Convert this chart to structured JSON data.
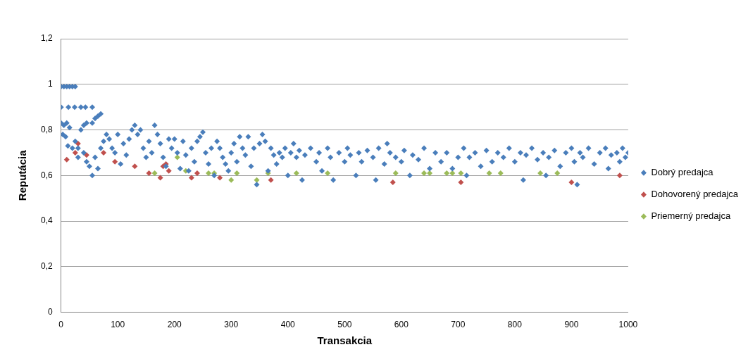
{
  "chart_data": {
    "type": "scatter",
    "xlabel": "Transakcia",
    "ylabel": "Reputácia",
    "xlim": [
      0,
      1000
    ],
    "ylim": [
      0,
      1.2
    ],
    "xticks": [
      0,
      100,
      200,
      300,
      400,
      500,
      600,
      700,
      800,
      900,
      1000
    ],
    "yticks": [
      0,
      {
        "value": 0.2,
        "label": "0,2"
      },
      {
        "value": 0.4,
        "label": "0,4"
      },
      {
        "value": 0.6,
        "label": "0,6"
      },
      {
        "value": 0.8,
        "label": "0,8"
      },
      1,
      {
        "value": 1.2,
        "label": "1,2"
      }
    ],
    "grid": "y",
    "legend": "right",
    "marker": "diamond",
    "series": [
      {
        "name": "Dobrý predajca",
        "color": "#4a7ebb",
        "x": [
          0,
          5,
          10,
          15,
          20,
          25,
          0,
          13,
          24,
          35,
          43,
          55,
          0,
          5,
          10,
          15,
          3,
          8,
          12,
          20,
          25,
          30,
          35,
          40,
          45,
          55,
          60,
          65,
          70,
          30,
          40,
          45,
          50,
          55,
          60,
          65,
          70,
          75,
          80,
          85,
          90,
          95,
          100,
          105,
          110,
          115,
          120,
          125,
          130,
          135,
          140,
          145,
          150,
          155,
          160,
          165,
          170,
          175,
          180,
          185,
          190,
          195,
          200,
          205,
          210,
          215,
          220,
          225,
          230,
          235,
          240,
          245,
          250,
          255,
          260,
          265,
          270,
          275,
          280,
          285,
          290,
          295,
          300,
          305,
          310,
          315,
          320,
          325,
          330,
          335,
          340,
          345,
          350,
          355,
          360,
          365,
          370,
          375,
          380,
          385,
          390,
          395,
          400,
          405,
          410,
          415,
          420,
          425,
          430,
          440,
          450,
          455,
          460,
          470,
          475,
          480,
          490,
          500,
          505,
          510,
          520,
          525,
          530,
          540,
          550,
          555,
          560,
          570,
          575,
          580,
          590,
          600,
          605,
          615,
          620,
          630,
          640,
          650,
          660,
          670,
          680,
          690,
          700,
          710,
          715,
          720,
          730,
          740,
          750,
          760,
          770,
          780,
          790,
          800,
          810,
          815,
          820,
          830,
          840,
          850,
          855,
          860,
          870,
          880,
          890,
          900,
          905,
          910,
          915,
          920,
          930,
          940,
          950,
          960,
          965,
          970,
          980,
          985,
          990,
          995,
          1000
        ],
        "values": [
          0.99,
          0.99,
          0.99,
          0.99,
          0.99,
          0.99,
          0.9,
          0.9,
          0.9,
          0.9,
          0.9,
          0.9,
          0.83,
          0.82,
          0.83,
          0.81,
          0.78,
          0.77,
          0.73,
          0.72,
          0.75,
          0.72,
          0.8,
          0.82,
          0.83,
          0.83,
          0.85,
          0.86,
          0.87,
          0.68,
          0.7,
          0.66,
          0.64,
          0.6,
          0.68,
          0.63,
          0.72,
          0.75,
          0.78,
          0.76,
          0.72,
          0.7,
          0.78,
          0.65,
          0.74,
          0.69,
          0.76,
          0.8,
          0.82,
          0.78,
          0.8,
          0.72,
          0.68,
          0.75,
          0.7,
          0.82,
          0.78,
          0.74,
          0.68,
          0.64,
          0.76,
          0.72,
          0.76,
          0.7,
          0.63,
          0.75,
          0.69,
          0.62,
          0.72,
          0.66,
          0.75,
          0.77,
          0.79,
          0.7,
          0.65,
          0.72,
          0.6,
          0.75,
          0.72,
          0.68,
          0.65,
          0.62,
          0.7,
          0.74,
          0.66,
          0.77,
          0.72,
          0.69,
          0.77,
          0.64,
          0.72,
          0.56,
          0.74,
          0.78,
          0.75,
          0.62,
          0.72,
          0.69,
          0.65,
          0.7,
          0.68,
          0.72,
          0.6,
          0.7,
          0.74,
          0.68,
          0.71,
          0.58,
          0.69,
          0.72,
          0.66,
          0.7,
          0.62,
          0.72,
          0.68,
          0.58,
          0.7,
          0.66,
          0.72,
          0.69,
          0.6,
          0.7,
          0.66,
          0.71,
          0.68,
          0.58,
          0.72,
          0.65,
          0.74,
          0.7,
          0.68,
          0.66,
          0.71,
          0.6,
          0.69,
          0.67,
          0.72,
          0.63,
          0.7,
          0.66,
          0.7,
          0.63,
          0.68,
          0.72,
          0.6,
          0.68,
          0.7,
          0.64,
          0.71,
          0.66,
          0.7,
          0.68,
          0.72,
          0.66,
          0.7,
          0.58,
          0.69,
          0.72,
          0.67,
          0.7,
          0.6,
          0.68,
          0.71,
          0.64,
          0.7,
          0.72,
          0.66,
          0.56,
          0.7,
          0.68,
          0.72,
          0.65,
          0.7,
          0.72,
          0.63,
          0.69,
          0.7,
          0.66,
          0.72,
          0.68,
          0.7
        ]
      },
      {
        "name": "Dohovorený predajca",
        "color": "#c0504d",
        "x": [
          10,
          25,
          30,
          45,
          75,
          95,
          130,
          155,
          175,
          180,
          185,
          190,
          230,
          240,
          280,
          370,
          585,
          705,
          900,
          985
        ],
        "values": [
          0.67,
          0.7,
          0.74,
          0.69,
          0.7,
          0.66,
          0.64,
          0.61,
          0.59,
          0.64,
          0.65,
          0.62,
          0.59,
          0.61,
          0.59,
          0.58,
          0.57,
          0.57,
          0.57,
          0.6
        ]
      },
      {
        "name": "Priemerný predajca",
        "color": "#9bbb59",
        "x": [
          165,
          205,
          220,
          260,
          270,
          300,
          310,
          345,
          365,
          415,
          470,
          590,
          640,
          650,
          680,
          690,
          705,
          755,
          775,
          845,
          875
        ],
        "values": [
          0.61,
          0.68,
          0.62,
          0.61,
          0.61,
          0.58,
          0.61,
          0.58,
          0.61,
          0.61,
          0.61,
          0.61,
          0.61,
          0.61,
          0.61,
          0.61,
          0.61,
          0.61,
          0.61,
          0.61,
          0.61
        ]
      }
    ]
  }
}
